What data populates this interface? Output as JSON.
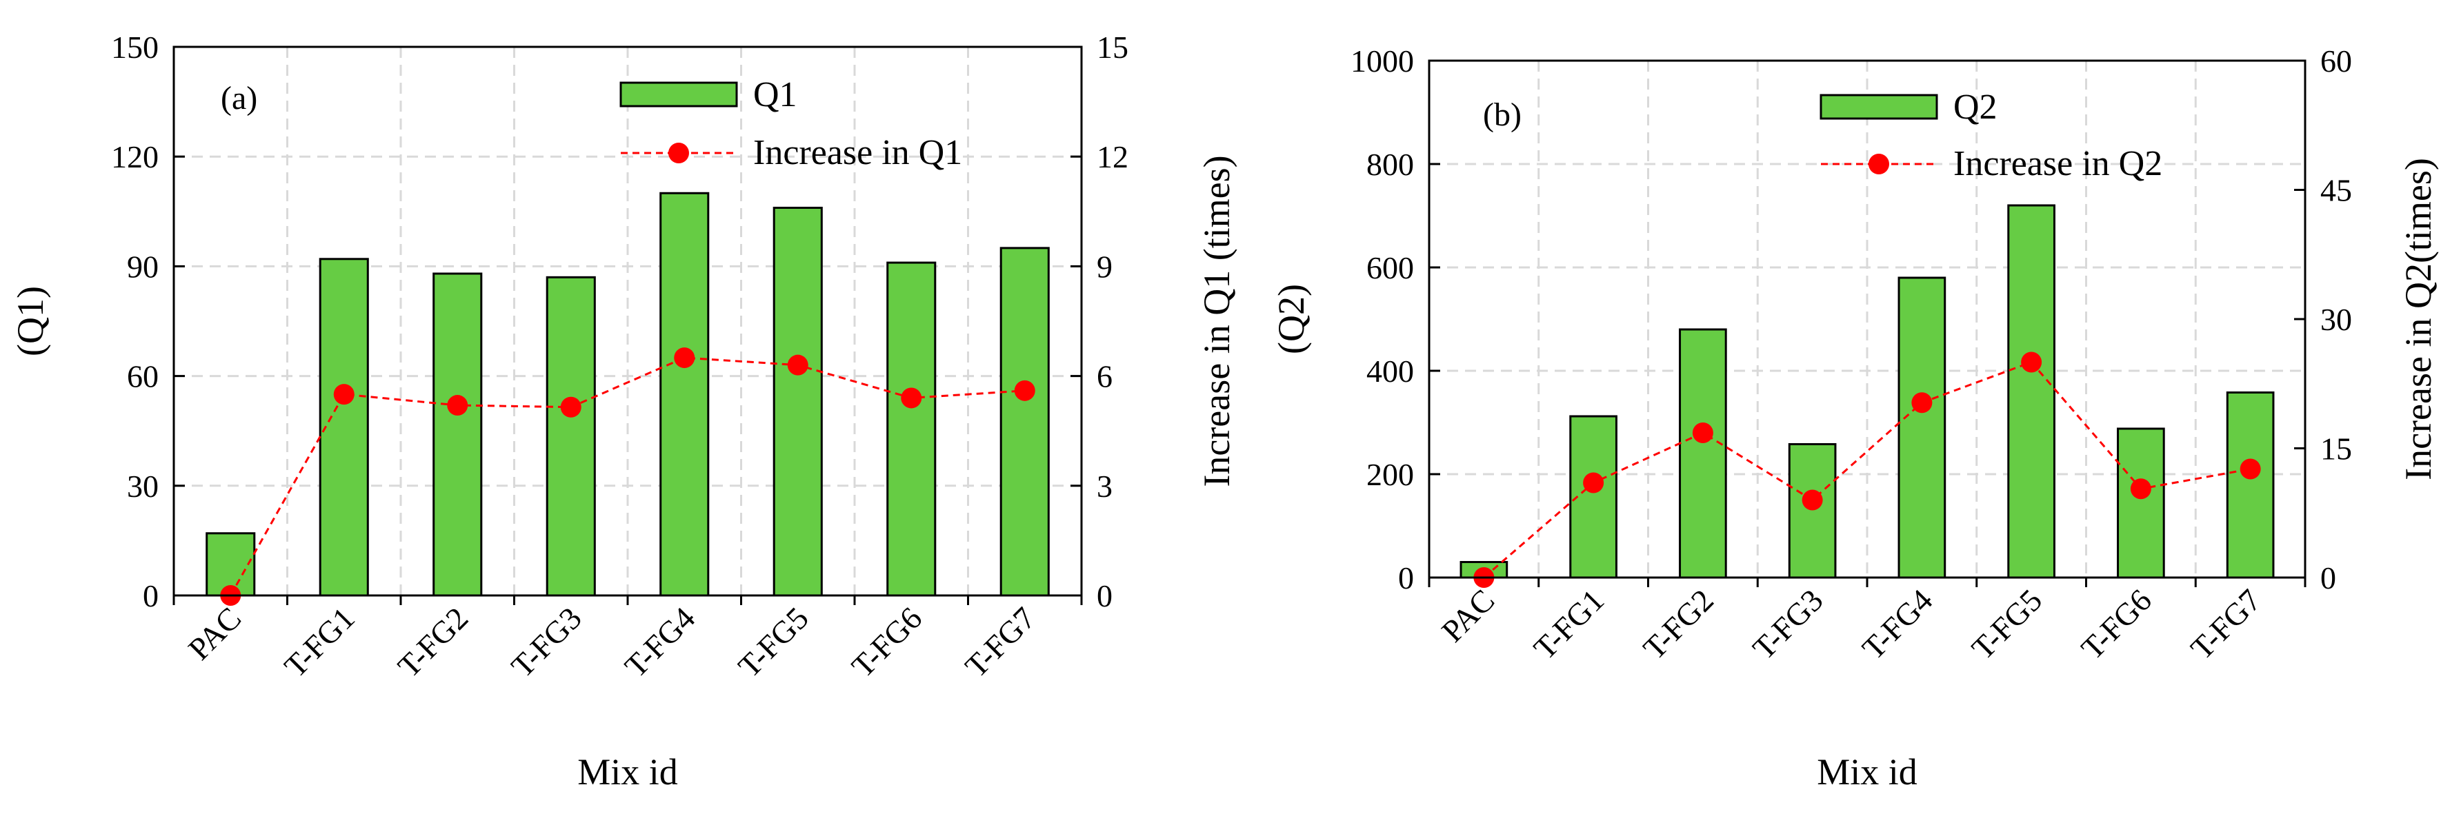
{
  "colors": {
    "bar_fill": "#66cc44",
    "bar_stroke": "#000000",
    "line": "#ff0000",
    "grid": "#d9d9d9",
    "axis": "#000000"
  },
  "chart_data": [
    {
      "panel": "(a)",
      "type": "bar+line",
      "categories": [
        "PAC",
        "T-FG1",
        "T-FG2",
        "T-FG3",
        "T-FG4",
        "T-FG5",
        "T-FG6",
        "T-FG7"
      ],
      "series": [
        {
          "name": "Q1",
          "type": "bar",
          "axis": "left",
          "values": [
            17,
            92,
            88,
            87,
            110,
            106,
            91,
            95
          ]
        },
        {
          "name": "Increase in Q1",
          "type": "line",
          "axis": "right",
          "values": [
            0,
            5.5,
            5.2,
            5.15,
            6.5,
            6.3,
            5.4,
            5.6
          ]
        }
      ],
      "xlabel": "Mix id",
      "ylabel": "(Q1)",
      "y2label": "Increase in Q1 (times)",
      "ylim": [
        0,
        150
      ],
      "yticks": [
        0,
        30,
        60,
        90,
        120,
        150
      ],
      "y2lim": [
        0,
        15
      ],
      "y2ticks": [
        0,
        3,
        6,
        9,
        12,
        15
      ],
      "grid": true,
      "legend": "top-center"
    },
    {
      "panel": "(b)",
      "type": "bar+line",
      "categories": [
        "PAC",
        "T-FG1",
        "T-FG2",
        "T-FG3",
        "T-FG4",
        "T-FG5",
        "T-FG6",
        "T-FG7"
      ],
      "series": [
        {
          "name": "Q2",
          "type": "bar",
          "axis": "left",
          "values": [
            30,
            312,
            480,
            258,
            580,
            720,
            288,
            358
          ]
        },
        {
          "name": "Increase in Q2",
          "type": "line",
          "axis": "right",
          "values": [
            0,
            11,
            16.8,
            9,
            20.3,
            25,
            10.3,
            12.6
          ]
        }
      ],
      "xlabel": "Mix id",
      "ylabel": "(Q2)",
      "y2label": "Increase in Q2(times)",
      "ylim": [
        0,
        1000
      ],
      "yticks": [
        0,
        200,
        400,
        600,
        800,
        1000
      ],
      "y2lim": [
        0,
        60
      ],
      "y2ticks": [
        0,
        15,
        30,
        45,
        60
      ],
      "grid": true,
      "legend": "top-center"
    }
  ]
}
